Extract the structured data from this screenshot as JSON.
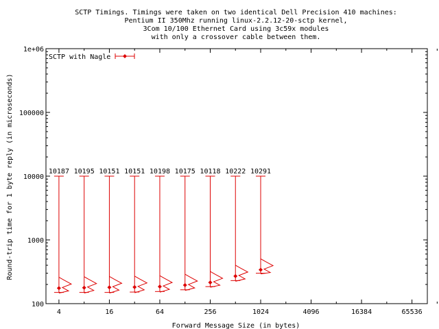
{
  "chart_data": {
    "type": "scatter",
    "title_lines": [
      "SCTP Timings.  Timings were taken on two identical Dell Precision 410 machines:",
      "Pentium II 350Mhz running linux-2.2.12-20-sctp kernel,",
      "3Com 10/100 Ethernet Card using 3c59x modules",
      "with only a crossover cable between them."
    ],
    "xlabel": "Forward Message Size (in bytes)",
    "ylabel": "Round-trip time for 1 byte reply (in microseconds)",
    "x_scale": "log2",
    "y_scale": "log10",
    "xlim": [
      2.8,
      100000
    ],
    "ylim": [
      100,
      1000000
    ],
    "x_ticks": [
      4,
      16,
      64,
      256,
      1024,
      4096,
      16384,
      65536
    ],
    "x_tick_labels": [
      "4",
      "16",
      "64",
      "256",
      "1024",
      "4096",
      "16384",
      "65536"
    ],
    "y_ticks": [
      100,
      1000,
      10000,
      100000,
      1000000
    ],
    "y_tick_labels": [
      "100",
      "1000",
      "10000",
      "100000",
      "1e+06"
    ],
    "legend": {
      "label": "SCTP with Nagle",
      "position": "top-left"
    },
    "colors": {
      "series": "#dd0000",
      "axis": "#000000"
    },
    "series": [
      {
        "name": "SCTP with Nagle",
        "points": [
          {
            "x": 4,
            "min": 150,
            "max": 10000,
            "median": 175,
            "label": "10187"
          },
          {
            "x": 8,
            "min": 150,
            "max": 10000,
            "median": 178,
            "label": "10195"
          },
          {
            "x": 16,
            "min": 150,
            "max": 10000,
            "median": 180,
            "label": "10151"
          },
          {
            "x": 32,
            "min": 152,
            "max": 10000,
            "median": 182,
            "label": "10151"
          },
          {
            "x": 64,
            "min": 155,
            "max": 10000,
            "median": 185,
            "label": "10198"
          },
          {
            "x": 128,
            "min": 165,
            "max": 10000,
            "median": 195,
            "label": "10175"
          },
          {
            "x": 256,
            "min": 185,
            "max": 10000,
            "median": 215,
            "label": "10118"
          },
          {
            "x": 512,
            "min": 230,
            "max": 10000,
            "median": 270,
            "label": "10222"
          },
          {
            "x": 1024,
            "min": 300,
            "max": 10000,
            "median": 340,
            "label": "10291"
          }
        ]
      }
    ]
  }
}
